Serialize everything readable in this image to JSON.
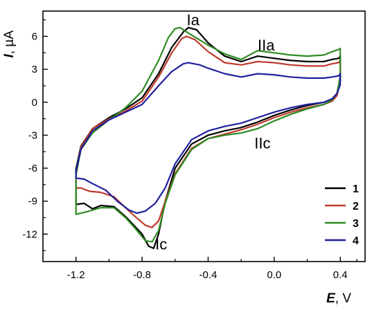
{
  "chart_data": {
    "type": "line",
    "xlabel": {
      "symbol": "E",
      "unit": ", V"
    },
    "ylabel": {
      "symbol": "I",
      "unit": ", µA"
    },
    "xlim": [
      -1.4,
      0.55
    ],
    "ylim": [
      -14.5,
      8.3
    ],
    "x_ticks": [
      -1.2,
      -0.8,
      -0.4,
      0.0,
      0.4
    ],
    "x_tick_labels": [
      "-1.2",
      "-0.8",
      "-0.4",
      "0.0",
      "0.4"
    ],
    "y_ticks": [
      6,
      3,
      0,
      -3,
      -6,
      -9,
      -12
    ],
    "y_tick_labels": [
      "6",
      "3",
      "0",
      "-3",
      "-6",
      "-9",
      "-12"
    ],
    "grid": false,
    "legend_position": "bottom-right",
    "annotations": [
      {
        "text": "Ia",
        "x": -0.53,
        "y": 7.0
      },
      {
        "text": "IIa",
        "x": -0.1,
        "y": 4.7
      },
      {
        "text": "IIc",
        "x": -0.12,
        "y": -4.2
      },
      {
        "text": "Ic",
        "x": -0.72,
        "y": -13.4
      }
    ],
    "series": [
      {
        "name": "1",
        "color": "#000000",
        "points": [
          [
            -1.2,
            -6.1
          ],
          [
            -1.17,
            -4.0
          ],
          [
            -1.1,
            -2.4
          ],
          [
            -1.0,
            -1.4
          ],
          [
            -0.9,
            -0.6
          ],
          [
            -0.8,
            0.4
          ],
          [
            -0.7,
            2.6
          ],
          [
            -0.62,
            5.0
          ],
          [
            -0.55,
            6.4
          ],
          [
            -0.52,
            6.8
          ],
          [
            -0.47,
            6.6
          ],
          [
            -0.4,
            5.4
          ],
          [
            -0.3,
            4.2
          ],
          [
            -0.2,
            3.7
          ],
          [
            -0.1,
            4.2
          ],
          [
            0.0,
            4.0
          ],
          [
            0.1,
            3.8
          ],
          [
            0.2,
            3.7
          ],
          [
            0.3,
            3.7
          ],
          [
            0.35,
            3.9
          ],
          [
            0.39,
            4.0
          ],
          [
            0.4,
            4.2
          ],
          [
            0.4,
            2.0
          ],
          [
            0.38,
            0.8
          ],
          [
            0.35,
            0.3
          ],
          [
            0.3,
            0.0
          ],
          [
            0.2,
            -0.3
          ],
          [
            0.1,
            -0.7
          ],
          [
            0.0,
            -1.2
          ],
          [
            -0.1,
            -1.8
          ],
          [
            -0.2,
            -2.3
          ],
          [
            -0.3,
            -2.6
          ],
          [
            -0.4,
            -3.0
          ],
          [
            -0.5,
            -3.8
          ],
          [
            -0.6,
            -6.0
          ],
          [
            -0.66,
            -9.0
          ],
          [
            -0.7,
            -12.0
          ],
          [
            -0.73,
            -13.3
          ],
          [
            -0.76,
            -13.1
          ],
          [
            -0.8,
            -12.0
          ],
          [
            -0.9,
            -10.4
          ],
          [
            -0.97,
            -9.5
          ],
          [
            -1.05,
            -9.4
          ],
          [
            -1.1,
            -9.7
          ],
          [
            -1.15,
            -9.2
          ],
          [
            -1.2,
            -9.3
          ]
        ]
      },
      {
        "name": "2",
        "color": "#c0392b",
        "points": [
          [
            -1.2,
            -6.6
          ],
          [
            -1.17,
            -4.1
          ],
          [
            -1.1,
            -2.4
          ],
          [
            -1.0,
            -1.5
          ],
          [
            -0.9,
            -0.8
          ],
          [
            -0.8,
            0.1
          ],
          [
            -0.7,
            2.3
          ],
          [
            -0.62,
            4.5
          ],
          [
            -0.56,
            5.8
          ],
          [
            -0.53,
            6.0
          ],
          [
            -0.48,
            5.7
          ],
          [
            -0.4,
            4.6
          ],
          [
            -0.3,
            3.6
          ],
          [
            -0.2,
            3.4
          ],
          [
            -0.1,
            3.7
          ],
          [
            0.0,
            3.6
          ],
          [
            0.1,
            3.4
          ],
          [
            0.2,
            3.3
          ],
          [
            0.3,
            3.3
          ],
          [
            0.35,
            3.5
          ],
          [
            0.39,
            3.6
          ],
          [
            0.4,
            3.8
          ],
          [
            0.4,
            2.0
          ],
          [
            0.38,
            0.6
          ],
          [
            0.35,
            0.1
          ],
          [
            0.3,
            -0.2
          ],
          [
            0.2,
            -0.5
          ],
          [
            0.1,
            -0.9
          ],
          [
            0.0,
            -1.4
          ],
          [
            -0.1,
            -2.0
          ],
          [
            -0.2,
            -2.5
          ],
          [
            -0.3,
            -2.9
          ],
          [
            -0.4,
            -3.3
          ],
          [
            -0.5,
            -4.2
          ],
          [
            -0.6,
            -6.5
          ],
          [
            -0.66,
            -9.0
          ],
          [
            -0.7,
            -10.8
          ],
          [
            -0.74,
            -11.4
          ],
          [
            -0.78,
            -11.2
          ],
          [
            -0.85,
            -10.3
          ],
          [
            -0.9,
            -9.6
          ],
          [
            -0.97,
            -8.6
          ],
          [
            -1.05,
            -8.2
          ],
          [
            -1.12,
            -8.1
          ],
          [
            -1.17,
            -7.8
          ],
          [
            -1.2,
            -7.8
          ]
        ]
      },
      {
        "name": "3",
        "color": "#2e8b22",
        "points": [
          [
            -1.2,
            -6.6
          ],
          [
            -1.17,
            -4.3
          ],
          [
            -1.1,
            -2.8
          ],
          [
            -1.0,
            -1.6
          ],
          [
            -0.9,
            -0.5
          ],
          [
            -0.8,
            1.0
          ],
          [
            -0.7,
            3.8
          ],
          [
            -0.64,
            5.9
          ],
          [
            -0.6,
            6.7
          ],
          [
            -0.57,
            6.8
          ],
          [
            -0.52,
            6.3
          ],
          [
            -0.4,
            5.2
          ],
          [
            -0.3,
            4.4
          ],
          [
            -0.2,
            3.9
          ],
          [
            -0.1,
            4.7
          ],
          [
            0.0,
            4.5
          ],
          [
            0.1,
            4.3
          ],
          [
            0.2,
            4.2
          ],
          [
            0.3,
            4.3
          ],
          [
            0.35,
            4.6
          ],
          [
            0.39,
            4.8
          ],
          [
            0.4,
            4.9
          ],
          [
            0.4,
            2.4
          ],
          [
            0.38,
            0.8
          ],
          [
            0.35,
            0.2
          ],
          [
            0.3,
            -0.2
          ],
          [
            0.2,
            -0.6
          ],
          [
            0.1,
            -1.1
          ],
          [
            0.0,
            -1.7
          ],
          [
            -0.1,
            -2.4
          ],
          [
            -0.2,
            -2.8
          ],
          [
            -0.3,
            -3.0
          ],
          [
            -0.4,
            -3.3
          ],
          [
            -0.5,
            -4.3
          ],
          [
            -0.6,
            -6.6
          ],
          [
            -0.66,
            -9.2
          ],
          [
            -0.7,
            -11.7
          ],
          [
            -0.74,
            -12.7
          ],
          [
            -0.78,
            -12.6
          ],
          [
            -0.84,
            -11.5
          ],
          [
            -0.9,
            -10.5
          ],
          [
            -0.97,
            -9.6
          ],
          [
            -1.05,
            -9.6
          ],
          [
            -1.12,
            -9.9
          ],
          [
            -1.17,
            -10.1
          ],
          [
            -1.2,
            -10.2
          ]
        ]
      },
      {
        "name": "4",
        "color": "#1f1f9e",
        "points": [
          [
            -1.2,
            -6.3
          ],
          [
            -1.17,
            -4.3
          ],
          [
            -1.1,
            -2.6
          ],
          [
            -1.0,
            -1.6
          ],
          [
            -0.9,
            -0.9
          ],
          [
            -0.8,
            -0.2
          ],
          [
            -0.7,
            1.5
          ],
          [
            -0.62,
            2.8
          ],
          [
            -0.55,
            3.5
          ],
          [
            -0.52,
            3.6
          ],
          [
            -0.45,
            3.4
          ],
          [
            -0.4,
            3.1
          ],
          [
            -0.3,
            2.6
          ],
          [
            -0.2,
            2.3
          ],
          [
            -0.1,
            2.6
          ],
          [
            0.0,
            2.5
          ],
          [
            0.1,
            2.3
          ],
          [
            0.2,
            2.2
          ],
          [
            0.3,
            2.2
          ],
          [
            0.35,
            2.3
          ],
          [
            0.39,
            2.4
          ],
          [
            0.4,
            2.6
          ],
          [
            0.4,
            1.6
          ],
          [
            0.38,
            0.8
          ],
          [
            0.35,
            0.3
          ],
          [
            0.3,
            0.0
          ],
          [
            0.2,
            -0.2
          ],
          [
            0.1,
            -0.5
          ],
          [
            0.0,
            -0.9
          ],
          [
            -0.1,
            -1.4
          ],
          [
            -0.2,
            -1.9
          ],
          [
            -0.3,
            -2.2
          ],
          [
            -0.4,
            -2.6
          ],
          [
            -0.5,
            -3.4
          ],
          [
            -0.6,
            -5.6
          ],
          [
            -0.66,
            -7.8
          ],
          [
            -0.72,
            -9.2
          ],
          [
            -0.78,
            -9.9
          ],
          [
            -0.83,
            -10.1
          ],
          [
            -0.88,
            -9.8
          ],
          [
            -0.95,
            -9.0
          ],
          [
            -1.02,
            -8.0
          ],
          [
            -1.1,
            -7.4
          ],
          [
            -1.15,
            -7.0
          ],
          [
            -1.2,
            -6.9
          ]
        ]
      }
    ]
  }
}
